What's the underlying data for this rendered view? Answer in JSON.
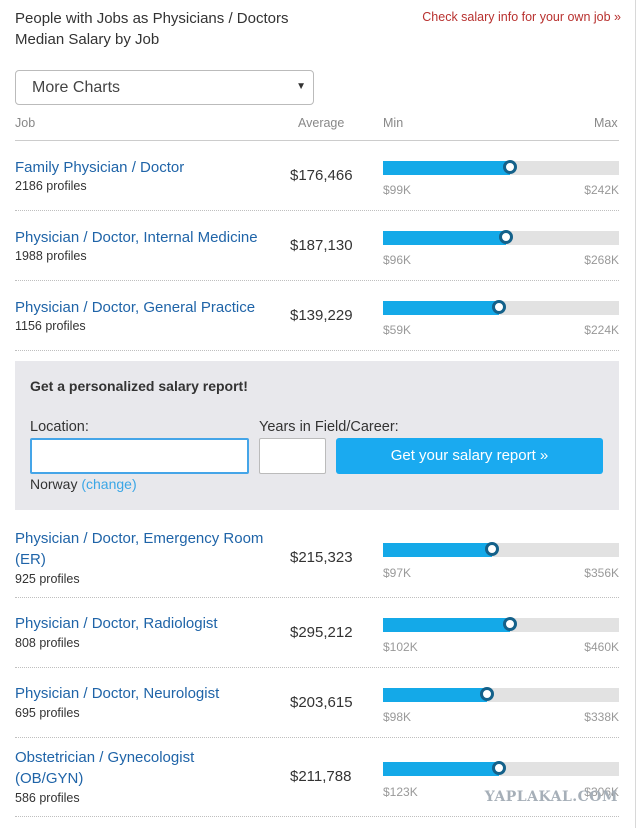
{
  "header": {
    "title_line1": "People with Jobs as Physicians / Doctors",
    "title_line2": "Median Salary by Job",
    "own_job_link": "Check salary info for your own job »"
  },
  "selector": {
    "label": "More Charts",
    "arrow_glyph": "▼"
  },
  "columns": {
    "job": "Job",
    "average": "Average",
    "min": "Min",
    "max": "Max"
  },
  "rows_top": [
    {
      "title_line1": "Family Physician / Doctor",
      "title_line2": "",
      "profiles": "2186 profiles",
      "average": "$176,466",
      "min": "$99K",
      "max": "$242K",
      "position": 0.54
    },
    {
      "title_line1": "Physician / Doctor, Internal Medicine",
      "title_line2": "",
      "profiles": "1988 profiles",
      "average": "$187,130",
      "min": "$96K",
      "max": "$268K",
      "position": 0.52
    },
    {
      "title_line1": "Physician / Doctor, General Practice",
      "title_line2": "",
      "profiles": "1156 profiles",
      "average": "$139,229",
      "min": "$59K",
      "max": "$224K",
      "position": 0.49
    }
  ],
  "promo": {
    "title": "Get a personalized salary report!",
    "location_label": "Location:",
    "location_value": "",
    "years_label": "Years in Field/Career:",
    "years_value": "",
    "button": "Get your salary report »",
    "country": "Norway",
    "change": "(change)"
  },
  "rows_bottom": [
    {
      "title_line1": "Physician / Doctor, Emergency Room",
      "title_line2": "(ER)",
      "profiles": "925 profiles",
      "average": "$215,323",
      "min": "$97K",
      "max": "$356K",
      "position": 0.46
    },
    {
      "title_line1": "Physician / Doctor, Radiologist",
      "title_line2": "",
      "profiles": "808 profiles",
      "average": "$295,212",
      "min": "$102K",
      "max": "$460K",
      "position": 0.54
    },
    {
      "title_line1": "Physician / Doctor, Neurologist",
      "title_line2": "",
      "profiles": "695 profiles",
      "average": "$203,615",
      "min": "$98K",
      "max": "$338K",
      "position": 0.44
    },
    {
      "title_line1": "Obstetrician / Gynecologist",
      "title_line2": "(OB/GYN)",
      "profiles": "586 profiles",
      "average": "$211,788",
      "min": "$123K",
      "max": "$306K",
      "position": 0.49
    }
  ],
  "watermark": "YAPLAKAL.COM"
}
